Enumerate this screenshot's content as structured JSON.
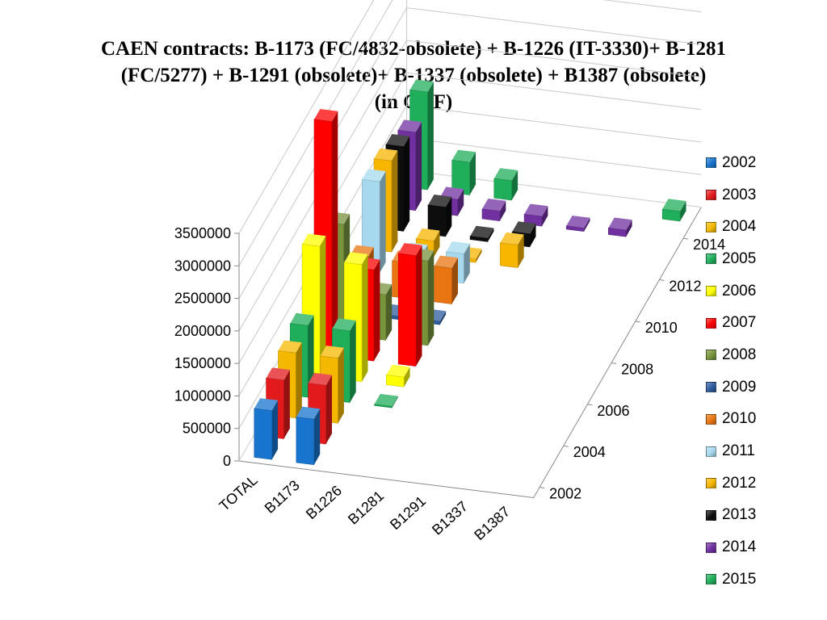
{
  "chart_data": {
    "type": "bar",
    "subtype": "3d-column",
    "title_lines": [
      "CAEN contracts: B-1173 (FC/4832-obsolete) + B-1226 (IT-3330)+ B-1281",
      "(FC/5277) + B-1291 (obsolete)+ B-1337 (obsolete) + B1387 (obsolete)",
      "(in CHF)"
    ],
    "categories": [
      "TOTAL",
      "B1173",
      "B1226",
      "B1281",
      "B1291",
      "B1337",
      "B1387"
    ],
    "depth_labels": [
      "2014",
      "2012",
      "2010",
      "2008",
      "2006",
      "2004",
      "2002"
    ],
    "y_ticks": [
      "3500000",
      "3000000",
      "2500000",
      "2000000",
      "1500000",
      "1000000",
      "500000",
      "0"
    ],
    "ylim": [
      0,
      3500000
    ],
    "legend_position": "right",
    "grid": true,
    "series": [
      {
        "name": "2002",
        "color": "#1874CD",
        "values": [
          750000,
          700000,
          0,
          0,
          0,
          0,
          0
        ]
      },
      {
        "name": "2003",
        "color": "#E31A1C",
        "values": [
          900000,
          900000,
          0,
          0,
          0,
          0,
          0
        ]
      },
      {
        "name": "2004",
        "color": "#F5B800",
        "values": [
          1000000,
          1000000,
          0,
          0,
          0,
          0,
          0
        ]
      },
      {
        "name": "2005",
        "color": "#1FAE5A",
        "values": [
          1100000,
          1100000,
          20000,
          0,
          0,
          0,
          0
        ]
      },
      {
        "name": "2006",
        "color": "#FFFF00",
        "values": [
          2000000,
          1800000,
          150000,
          0,
          0,
          0,
          0
        ]
      },
      {
        "name": "2007",
        "color": "#FF0000",
        "values": [
          3600000,
          1400000,
          1700000,
          0,
          0,
          0,
          0
        ]
      },
      {
        "name": "2008",
        "color": "#77933C",
        "values": [
          1700000,
          700000,
          1300000,
          0,
          0,
          0,
          0
        ]
      },
      {
        "name": "2009",
        "color": "#2E5C9E",
        "values": [
          50000,
          50000,
          50000,
          0,
          0,
          0,
          0
        ]
      },
      {
        "name": "2010",
        "color": "#E87511",
        "values": [
          550000,
          550000,
          550000,
          0,
          0,
          0,
          0
        ]
      },
      {
        "name": "2011",
        "color": "#A6D9EE",
        "values": [
          1400000,
          350000,
          450000,
          0,
          0,
          0,
          0
        ]
      },
      {
        "name": "2012",
        "color": "#F7B500",
        "values": [
          1400000,
          250000,
          50000,
          350000,
          0,
          0,
          0
        ]
      },
      {
        "name": "2013",
        "color": "#0D0D0D",
        "values": [
          1300000,
          450000,
          50000,
          200000,
          0,
          0,
          0
        ]
      },
      {
        "name": "2014",
        "color": "#7030A0",
        "values": [
          1200000,
          250000,
          150000,
          150000,
          50000,
          100000,
          0
        ]
      },
      {
        "name": "2015",
        "color": "#1FAE5A",
        "values": [
          1500000,
          500000,
          300000,
          0,
          0,
          0,
          150000
        ]
      }
    ]
  }
}
